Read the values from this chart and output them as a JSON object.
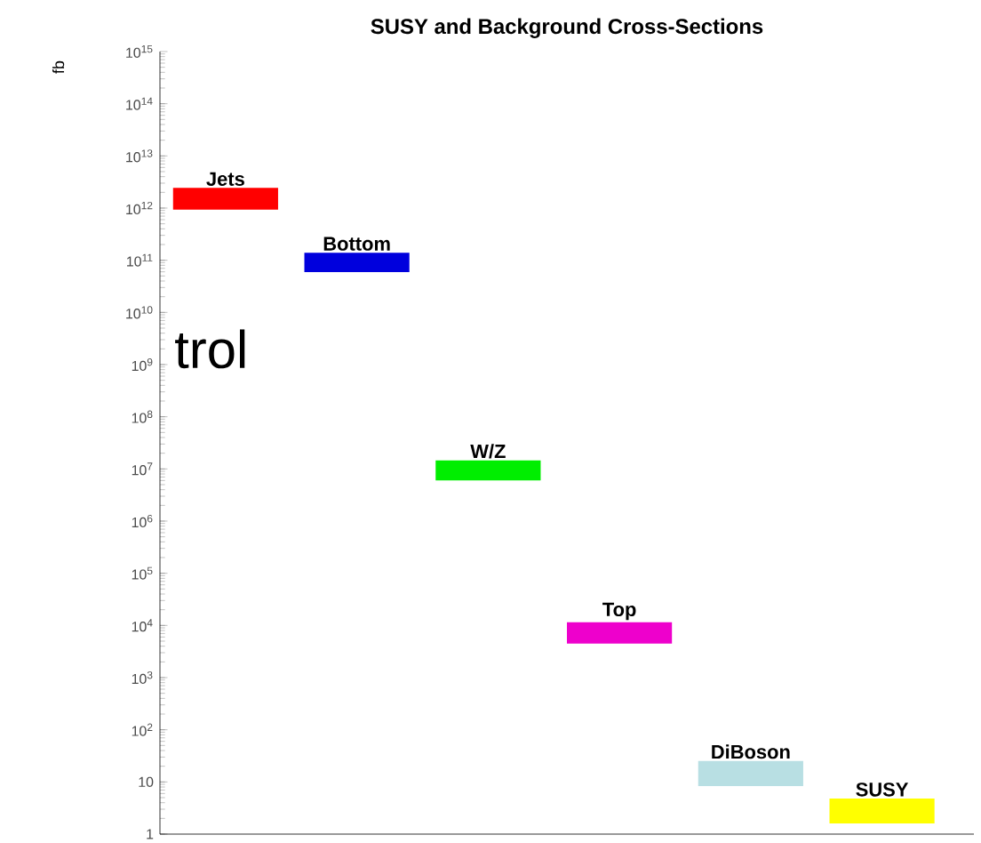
{
  "chart_data": {
    "type": "bar",
    "title": "SUSY and Background Cross-Sections",
    "ylabel": "fb",
    "categories": [
      "Jets",
      "Bottom",
      "W/Z",
      "Top",
      "DiBoson",
      "SUSY"
    ],
    "base": [
      930000000000.0,
      59000000000.0,
      6000000.0,
      4500,
      8.3,
      1.6
    ],
    "values": [
      1500000000000.0,
      80000000000.0,
      8500000.0,
      7000,
      17,
      3.2
    ],
    "colors": [
      "#ff0000",
      "#0000dd",
      "#00ee00",
      "#ee00cc",
      "#b8dfe3",
      "#ffff00"
    ],
    "log": "y",
    "ylim": [
      1,
      1000000000000000.0
    ],
    "yticks": [
      1,
      10,
      {
        "value": 100,
        "label": "10$^{2}$"
      },
      {
        "value": 1000,
        "label": "10$^{3}$"
      },
      {
        "value": 10000,
        "label": "10$^{4}$"
      },
      {
        "value": 100000,
        "label": "10$^{5}$"
      },
      {
        "value": 1000000,
        "label": "10$^{6}$"
      },
      {
        "value": 10000000,
        "label": "10$^{7}$"
      },
      {
        "value": 100000000,
        "label": "10$^{8}$"
      },
      {
        "value": 1000000000,
        "label": "10$^{9}$"
      },
      {
        "value": 10000000000,
        "label": "10$^{10}$"
      },
      {
        "value": 100000000000,
        "label": "10$^{11}$"
      },
      {
        "value": 1000000000000,
        "label": "10$^{12}$"
      },
      {
        "value": 10000000000000,
        "label": "10$^{13}$"
      },
      {
        "value": 100000000000000,
        "label": "10$^{14}$"
      },
      {
        "value": 1000000000000000,
        "label": "10$^{15}$"
      }
    ],
    "tick_labels": "y",
    "annotations": [
      "trol"
    ]
  }
}
